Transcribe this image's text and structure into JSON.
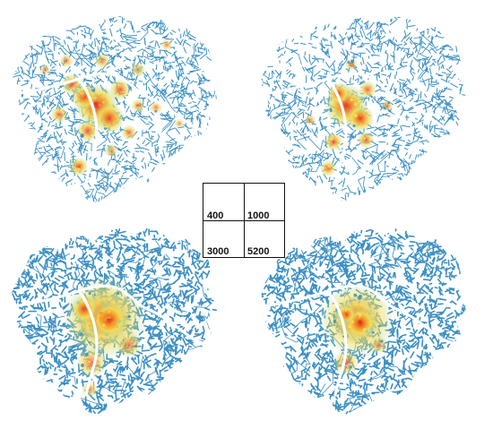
{
  "panels": [
    {
      "label": "400",
      "hotspot_pattern": "multi-center"
    },
    {
      "label": "1000",
      "hotspot_pattern": "multi-center-fewer"
    },
    {
      "label": "3000",
      "hotspot_pattern": "central-diffuse"
    },
    {
      "label": "5200",
      "hotspot_pattern": "central-concentrated"
    }
  ],
  "legend_key": {
    "top_left": "400",
    "top_right": "1000",
    "bottom_left": "3000",
    "bottom_right": "5200"
  },
  "colors": {
    "network_low": "#3b8fc4",
    "mid": "#9fd0a5",
    "high_yellow": "#f4e15a",
    "high_orange": "#f39a2a",
    "peak_red": "#e0301c",
    "river": "#ffffff"
  }
}
